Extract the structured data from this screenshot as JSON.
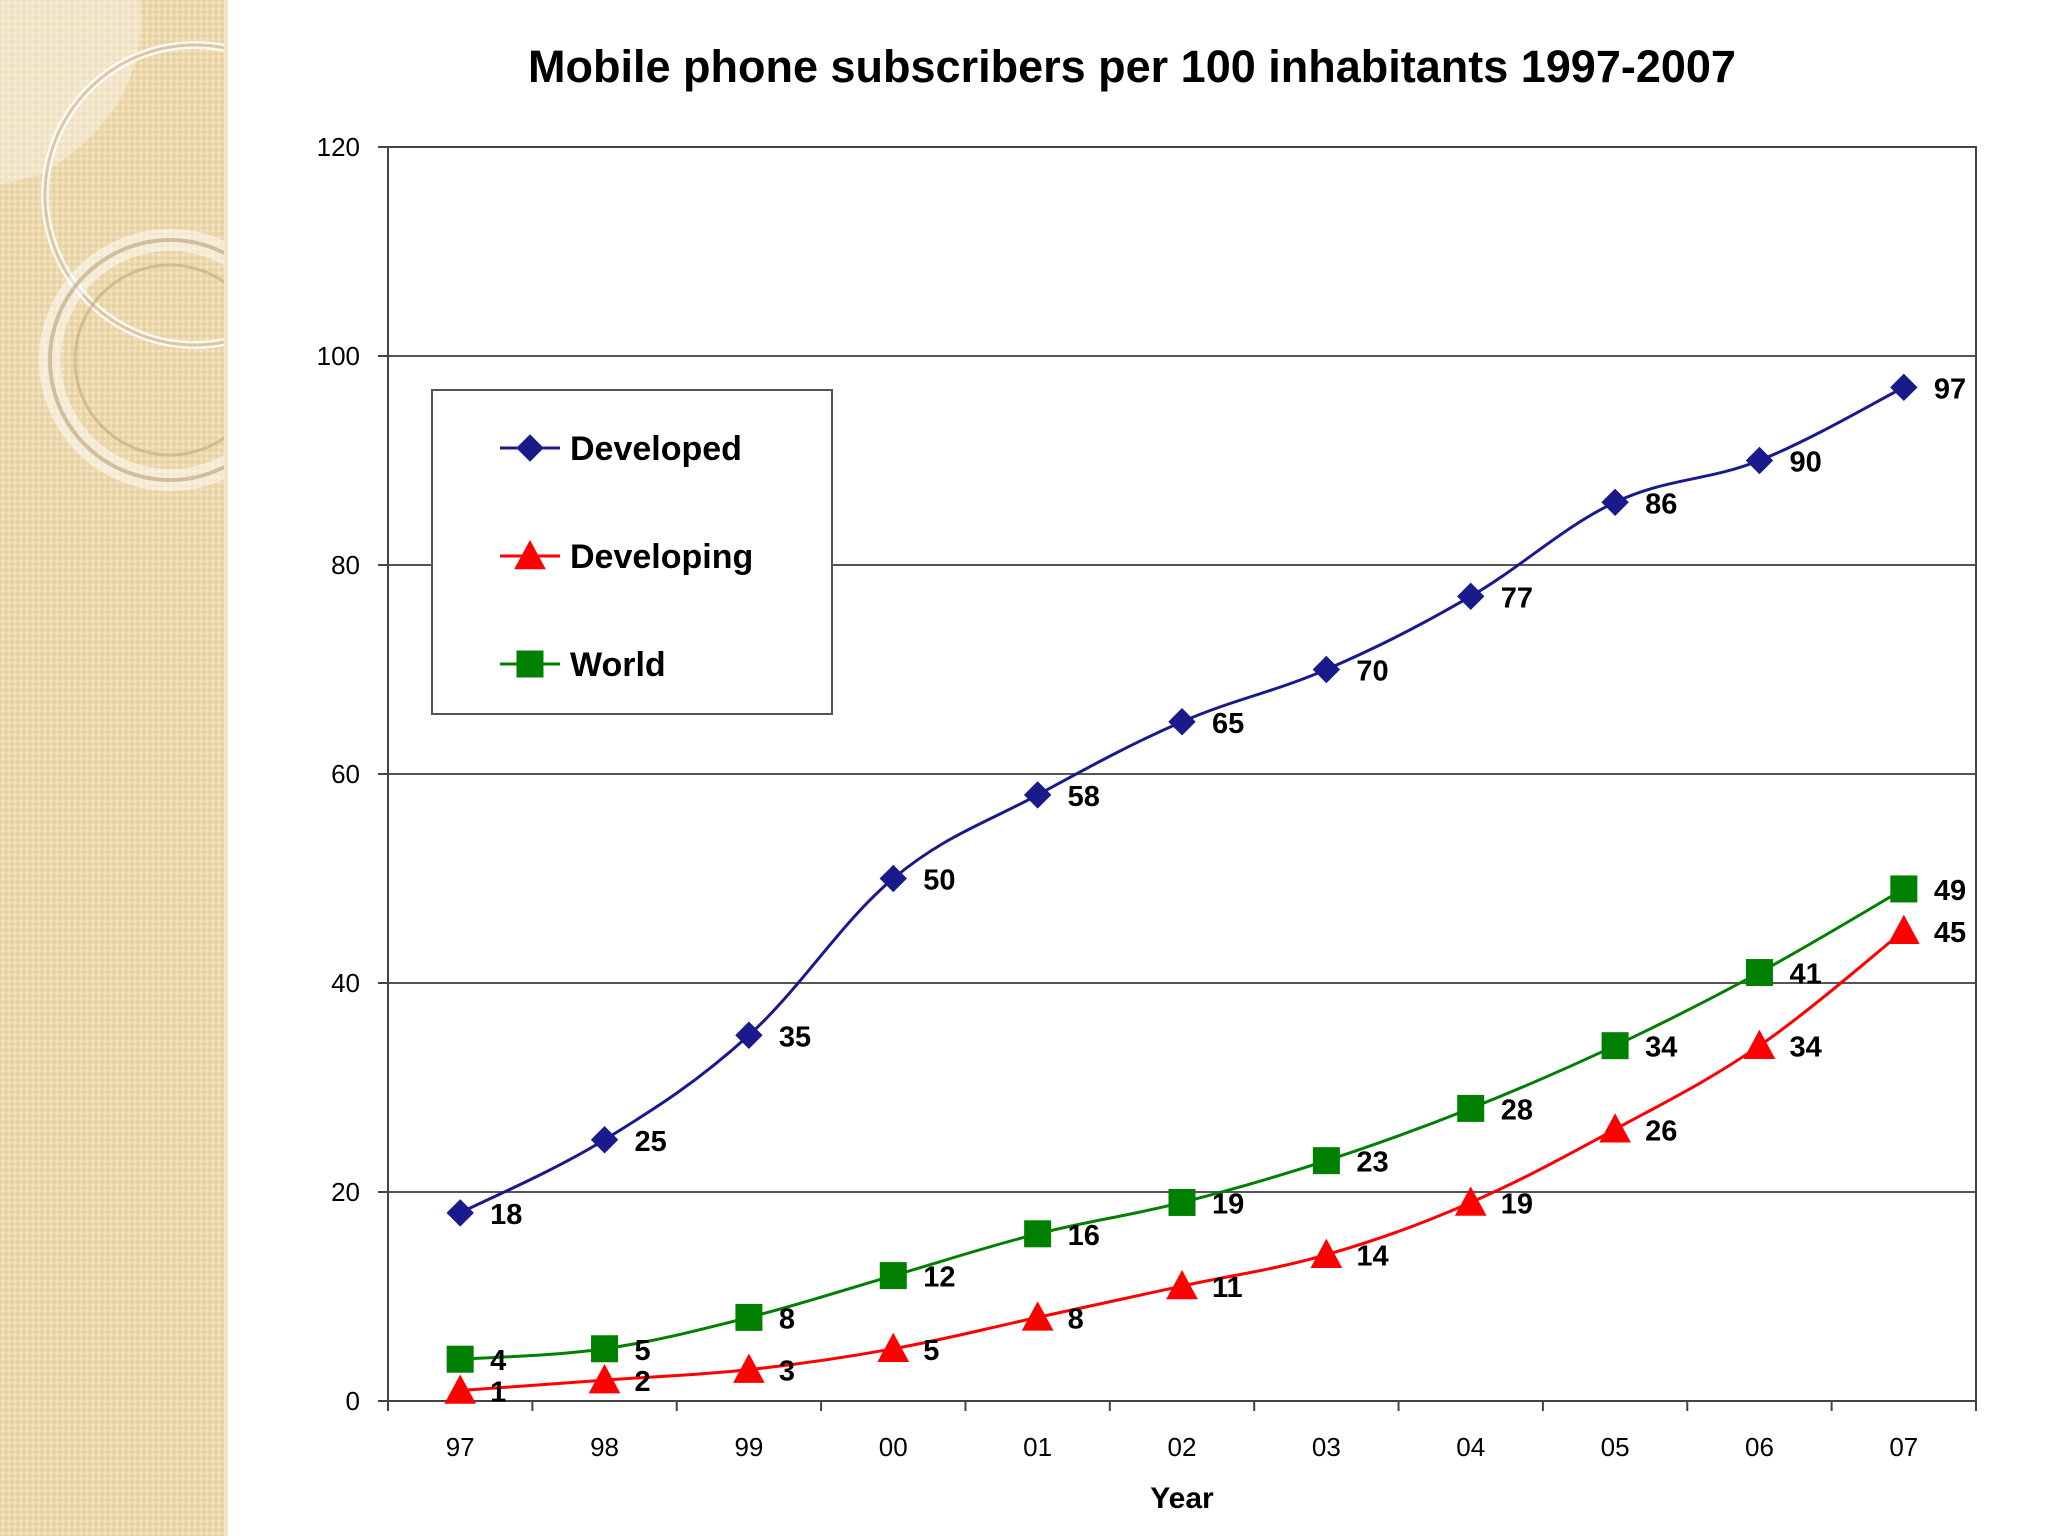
{
  "chart_data": {
    "type": "line",
    "title": "Mobile phone subscribers per 100 inhabitants 1997-2007",
    "xlabel": "Year",
    "ylabel": "",
    "categories": [
      "97",
      "98",
      "99",
      "00",
      "01",
      "02",
      "03",
      "04",
      "05",
      "06",
      "07"
    ],
    "ylim": [
      0,
      120
    ],
    "yticks": [
      0,
      20,
      40,
      60,
      80,
      100,
      120
    ],
    "grid": true,
    "legend_position": "top-left",
    "series": [
      {
        "name": "Developed",
        "color": "#1a1a8c",
        "marker": "diamond",
        "values": [
          18,
          25,
          35,
          50,
          58,
          65,
          70,
          77,
          86,
          90,
          97
        ]
      },
      {
        "name": "Developing",
        "color": "#ff0000",
        "marker": "triangle",
        "values": [
          1,
          2,
          3,
          5,
          8,
          11,
          14,
          19,
          26,
          34,
          45
        ]
      },
      {
        "name": "World",
        "color": "#008000",
        "marker": "square",
        "values": [
          4,
          5,
          8,
          12,
          16,
          19,
          23,
          28,
          34,
          41,
          49
        ]
      }
    ]
  }
}
